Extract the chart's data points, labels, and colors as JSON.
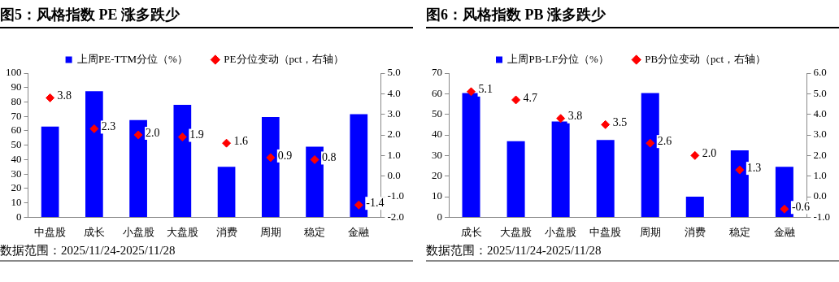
{
  "chart_data": [
    {
      "type": "bar",
      "title": "图5：风格指数 PE 涨多跌少",
      "categories": [
        "中盘股",
        "成长",
        "小盘股",
        "大盘股",
        "消费",
        "周期",
        "稳定",
        "金融"
      ],
      "series": [
        {
          "name": "上周PE-TTM分位（%）",
          "color": "#0000ff",
          "values": [
            63,
            87.5,
            67.5,
            78,
            35,
            69.5,
            49,
            71.5
          ]
        },
        {
          "name": "PE分位变动（pct，右轴）",
          "type": "scatter",
          "axis": "y2",
          "color": "#ff0000",
          "values": [
            3.8,
            2.3,
            2.0,
            1.9,
            1.6,
            0.9,
            0.8,
            -1.4
          ],
          "value_labels": [
            "3.8",
            "2.3",
            "2.0",
            "1.9",
            "1.6",
            "0.9",
            "0.8",
            "-1.4"
          ]
        }
      ],
      "ylim": [
        0,
        100
      ],
      "yticks": [
        0,
        10,
        20,
        30,
        40,
        50,
        60,
        70,
        80,
        90,
        100
      ],
      "y2lim": [
        -2,
        5
      ],
      "y2ticks": [
        {
          "value": -2,
          "label": "-2.0"
        },
        {
          "value": -1,
          "label": "-1.0"
        },
        {
          "value": 0,
          "label": "0.0"
        },
        {
          "value": 1,
          "label": "1.0"
        },
        {
          "value": 2,
          "label": "2.0"
        },
        {
          "value": 3,
          "label": "3.0"
        },
        {
          "value": 4,
          "label": "4.0"
        },
        {
          "value": 5,
          "label": "5.0"
        }
      ],
      "legend": "top",
      "marker": "diamond",
      "grid": false,
      "annotations": [
        "数据范围：2025/11/24-2025/11/28"
      ]
    },
    {
      "type": "bar",
      "title": "图6：风格指数 PB 涨多跌少",
      "categories": [
        "成长",
        "大盘股",
        "小盘股",
        "中盘股",
        "周期",
        "消费",
        "稳定",
        "金融"
      ],
      "series": [
        {
          "name": "上周PB-LF分位（%）",
          "color": "#0000ff",
          "values": [
            60.3,
            37,
            46.5,
            37.5,
            60.3,
            10,
            32.5,
            24.5
          ]
        },
        {
          "name": "PB分位变动（pct，右轴）",
          "type": "scatter",
          "axis": "y2",
          "color": "#ff0000",
          "values": [
            5.1,
            4.7,
            3.8,
            3.5,
            2.6,
            2.0,
            1.3,
            -0.6
          ],
          "value_labels": [
            "5.1",
            "4.7",
            "3.8",
            "3.5",
            "2.6",
            "2.0",
            "1.3",
            "-0.6"
          ]
        }
      ],
      "ylim": [
        0,
        70
      ],
      "yticks": [
        0,
        10,
        20,
        30,
        40,
        50,
        60,
        70
      ],
      "y2lim": [
        -1,
        6
      ],
      "y2ticks": [
        {
          "value": -1,
          "label": "-1.0"
        },
        {
          "value": 0,
          "label": "0.0"
        },
        {
          "value": 1,
          "label": "1.0"
        },
        {
          "value": 2,
          "label": "2.0"
        },
        {
          "value": 3,
          "label": "3.0"
        },
        {
          "value": 4,
          "label": "4.0"
        },
        {
          "value": 5,
          "label": "5.0"
        },
        {
          "value": 6,
          "label": "6.0"
        }
      ],
      "legend": "top",
      "marker": "diamond",
      "grid": false,
      "annotations": [
        "数据范围：2025/11/24-2025/11/28"
      ]
    }
  ]
}
